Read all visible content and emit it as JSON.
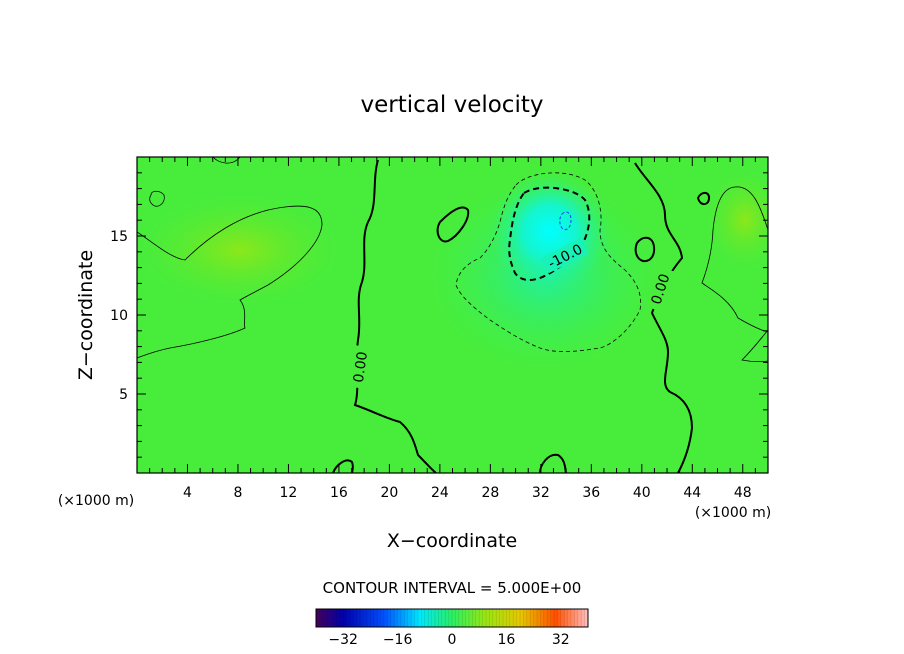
{
  "chart_data": {
    "type": "heatmap",
    "title": "vertical velocity",
    "xlabel": "X−coordinate",
    "ylabel": "Z−coordinate",
    "x_unit_left": "(×1000 m)",
    "x_unit_right": "(×1000 m)",
    "xlim": [
      0,
      50
    ],
    "ylim": [
      0,
      20
    ],
    "x_ticks": [
      4,
      8,
      12,
      16,
      20,
      24,
      28,
      32,
      36,
      40,
      44,
      48
    ],
    "y_ticks": [
      5,
      10,
      15
    ],
    "contour_interval_text": "CONTOUR INTERVAL = 5.000E+00",
    "contour_labels": [
      "0.00",
      "0.00",
      "-10.0"
    ],
    "colorbar": {
      "ticks": [
        -32,
        -16,
        0,
        16,
        32
      ],
      "tick_labels": [
        "−32",
        "−16",
        "0",
        "16",
        "32"
      ],
      "range": [
        -40,
        40
      ]
    },
    "features": [
      {
        "name": "downdraft core",
        "x": 33,
        "z": 15,
        "value": -20
      },
      {
        "name": "-10 contour region",
        "x": 31,
        "z": 14.5,
        "value": -10
      },
      {
        "name": "-5 contour region",
        "x": 31,
        "z": 11,
        "value": -5
      },
      {
        "name": "updraft left",
        "x": 9,
        "z": 14,
        "value": 6
      },
      {
        "name": "updraft right",
        "x": 48,
        "z": 16,
        "value": 6
      }
    ]
  }
}
